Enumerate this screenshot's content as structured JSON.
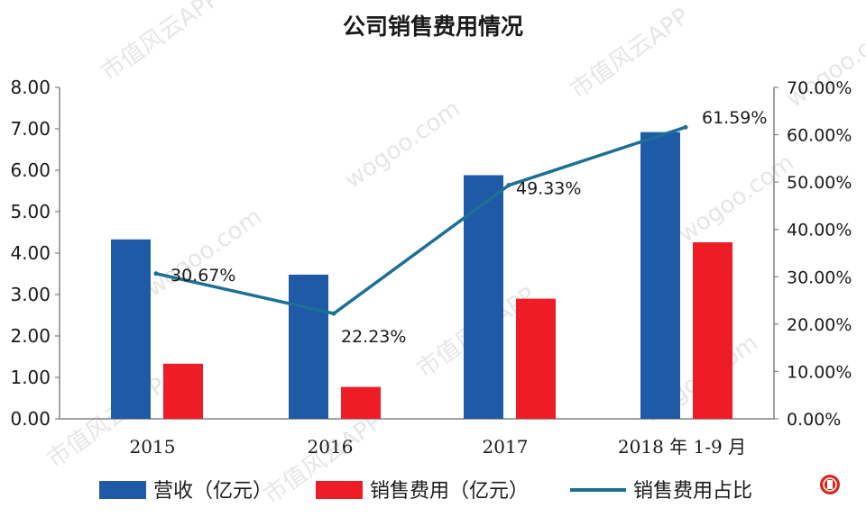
{
  "chart_data": {
    "type": "bar",
    "title": "公司销售费用情况",
    "categories": [
      "2015",
      "2016",
      "2017",
      "2018 年 1-9 月"
    ],
    "series": [
      {
        "name": "营收（亿元）",
        "type": "bar",
        "axis": "left",
        "color": "#1f5aa6",
        "values": [
          4.33,
          3.48,
          5.88,
          6.92
        ]
      },
      {
        "name": "销售费用（亿元）",
        "type": "bar",
        "axis": "left",
        "color": "#ee1c24",
        "values": [
          1.33,
          0.77,
          2.9,
          4.26
        ]
      },
      {
        "name": "销售费用占比",
        "type": "line",
        "axis": "right",
        "color": "#1d6f95",
        "values": [
          30.67,
          22.23,
          49.33,
          61.59
        ],
        "labels": [
          "30.67%",
          "22.23%",
          "49.33%",
          "61.59%"
        ]
      }
    ],
    "y_left": {
      "min": 0,
      "max": 8,
      "step": 1,
      "ticks": [
        "0.00",
        "1.00",
        "2.00",
        "3.00",
        "4.00",
        "5.00",
        "6.00",
        "7.00",
        "8.00"
      ]
    },
    "y_right": {
      "min": 0,
      "max": 70,
      "step": 10,
      "ticks": [
        "0.00%",
        "10.00%",
        "20.00%",
        "30.00%",
        "40.00%",
        "50.00%",
        "60.00%",
        "70.00%"
      ]
    },
    "grid": false,
    "legend": "bottom"
  },
  "watermark": {
    "texts": [
      "市值风云APP",
      "wogoo.com"
    ]
  },
  "colors": {
    "axis": "#808080",
    "text": "#1a1a1a"
  }
}
